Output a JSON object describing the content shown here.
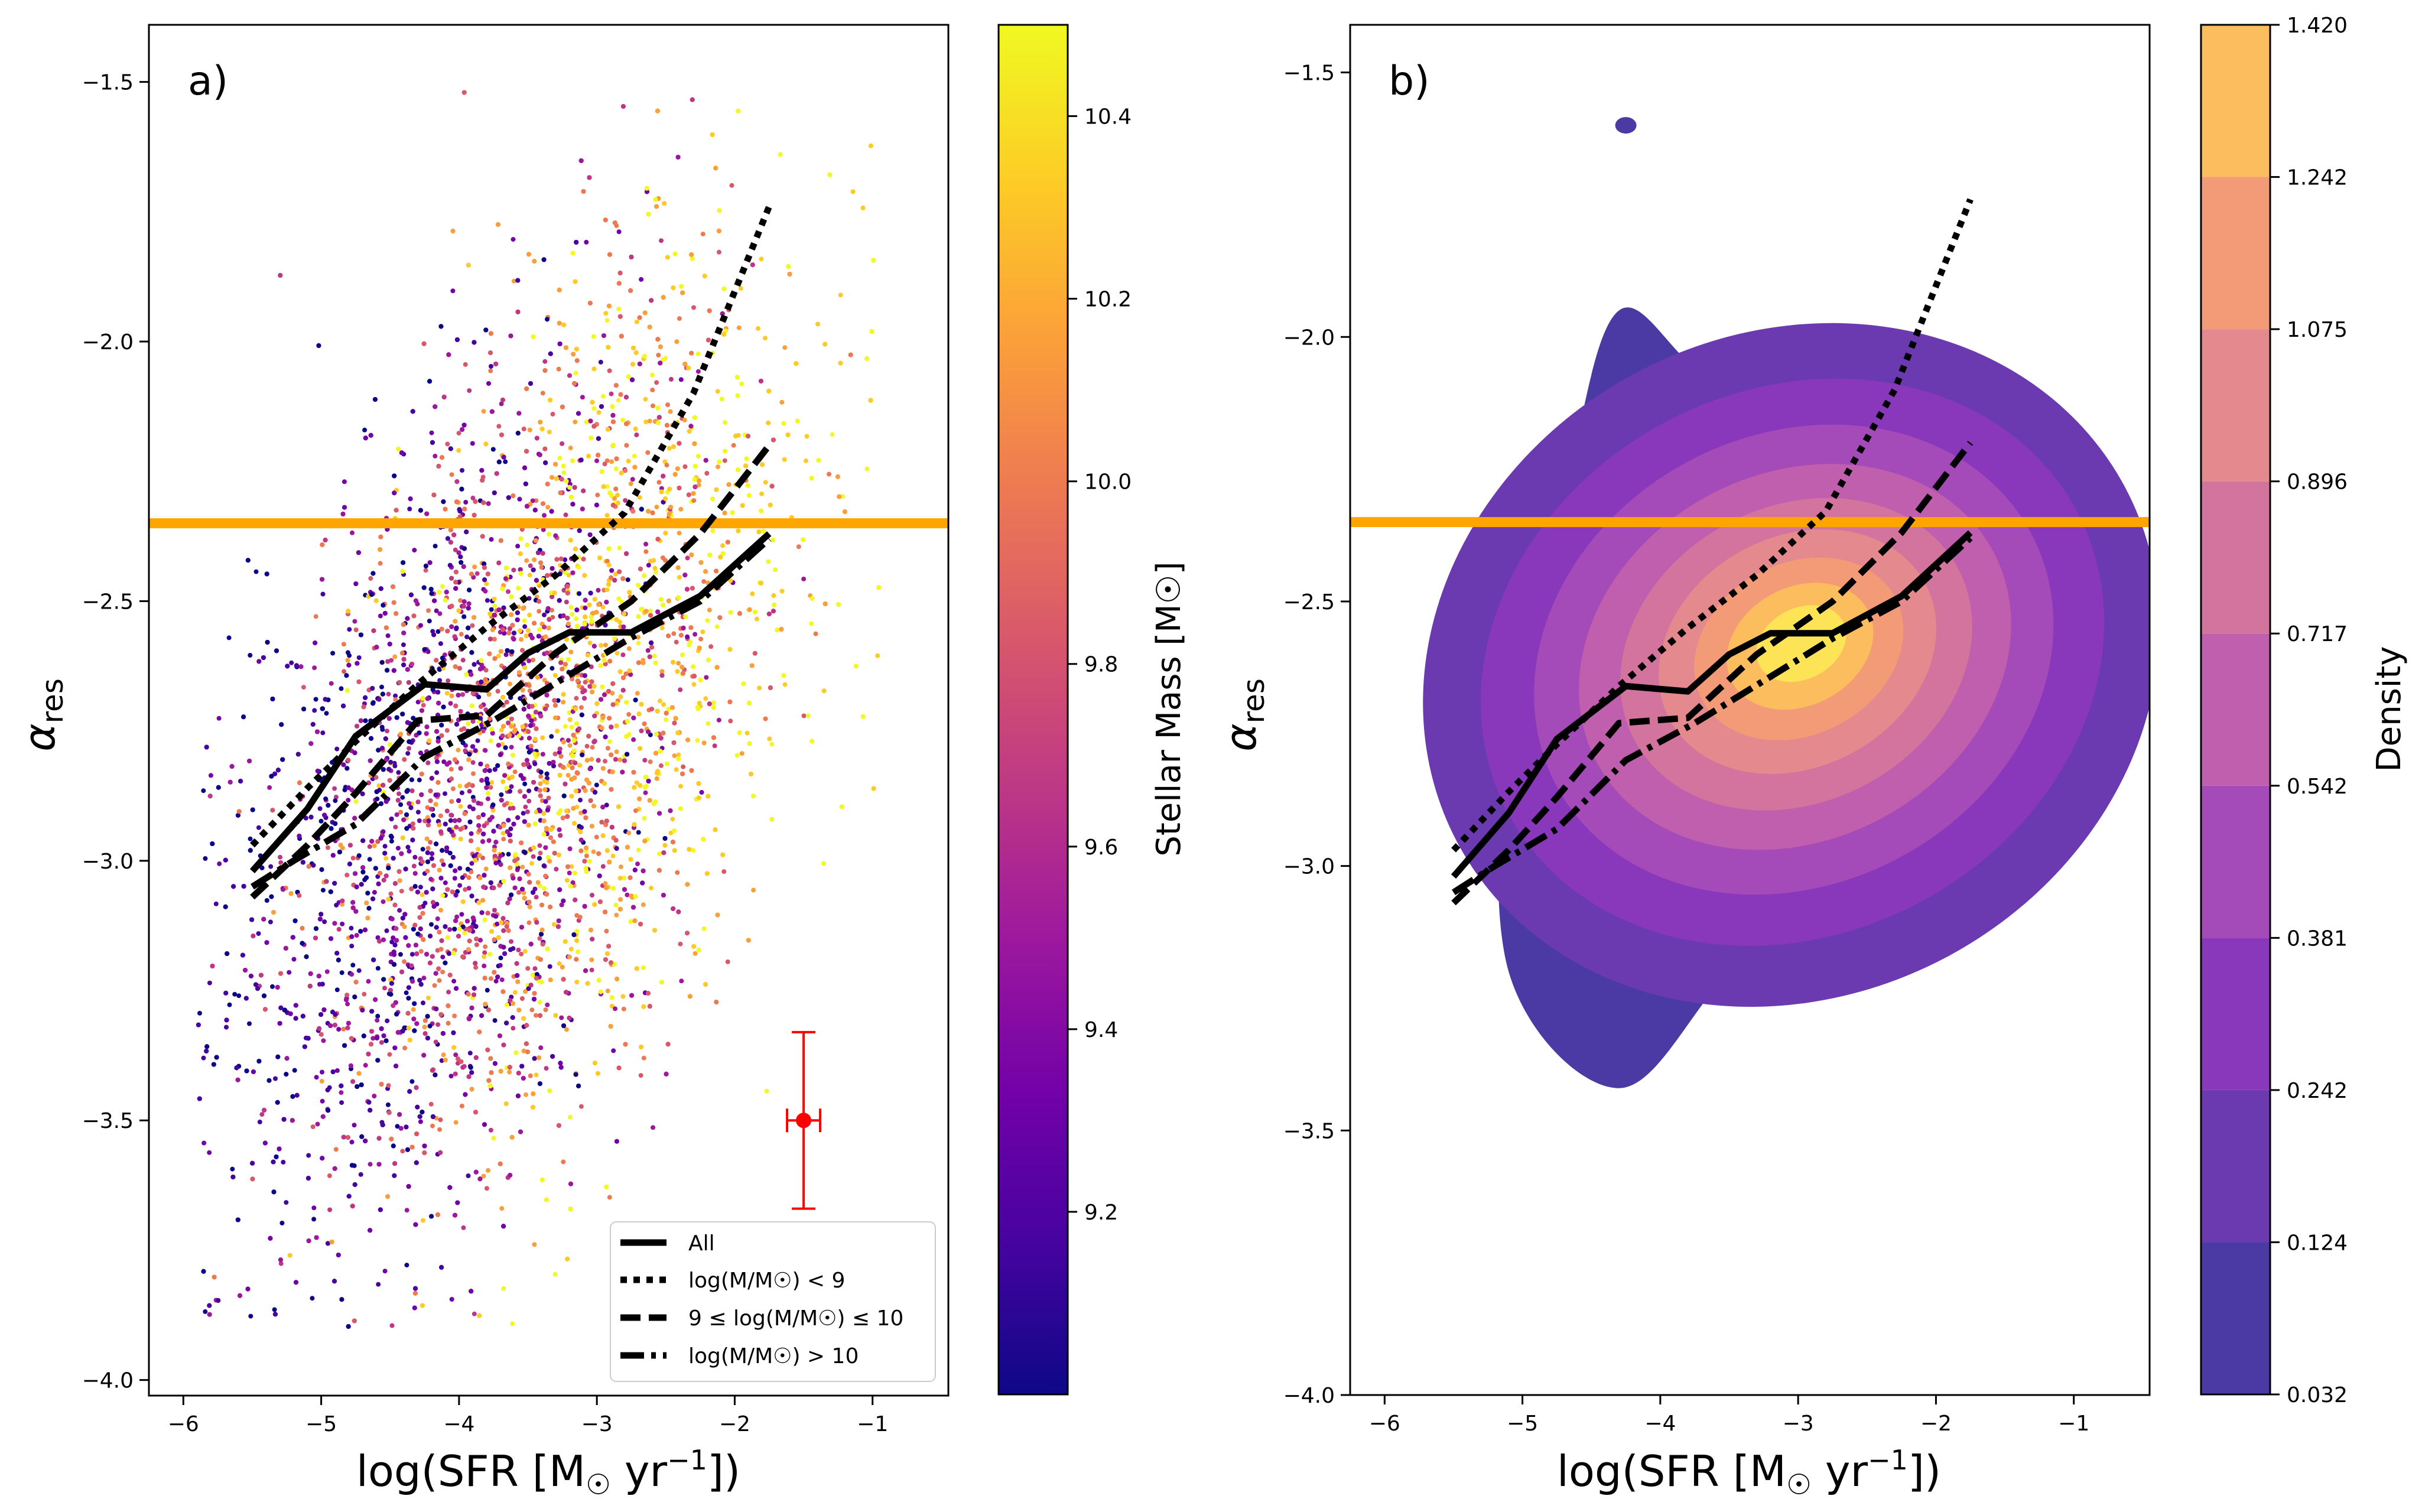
{
  "colors": {
    "hline": "#FFA500",
    "errorbar": "#FF0000",
    "line": "#000000",
    "cmap_plasma": [
      "#0d0887",
      "#46039f",
      "#7201a8",
      "#9c179e",
      "#bd3786",
      "#d8576b",
      "#ed7953",
      "#fb9f3a",
      "#fdca26",
      "#f0f921"
    ],
    "density_levels": [
      "#4b3aa3",
      "#6b3ab0",
      "#8a38bb",
      "#a54ab9",
      "#bf5fad",
      "#d3749f",
      "#e48a8e",
      "#f39b76",
      "#fbbd5e",
      "#fde456"
    ]
  },
  "chart_data": [
    {
      "panel": "a)",
      "type": "scatter",
      "title": "",
      "xlabel": "log(SFR [M☉ yr⁻¹])",
      "ylabel": "αres",
      "xlim": [
        -6.25,
        -0.45
      ],
      "ylim": [
        -4.03,
        -1.39
      ],
      "xticks": [
        -6,
        -5,
        -4,
        -3,
        -2,
        -1
      ],
      "yticks": [
        -4.0,
        -3.5,
        -3.0,
        -2.5,
        -2.0,
        -1.5
      ],
      "xtick_labels": [
        "−6",
        "−5",
        "−4",
        "−3",
        "−2",
        "−1"
      ],
      "ytick_labels": [
        "−4.0",
        "−3.5",
        "−3.0",
        "−2.5",
        "−2.0",
        "−1.5"
      ],
      "hline_y": -2.35,
      "errorbar": {
        "x": -1.5,
        "y": -3.5,
        "xerr": 0.12,
        "yerr": 0.17
      },
      "series": [
        {
          "name": "All",
          "style": "solid",
          "x": [
            -5.5,
            -5.1,
            -4.75,
            -4.25,
            -3.8,
            -3.5,
            -3.2,
            -2.75,
            -2.25,
            -1.75
          ],
          "y": [
            -3.02,
            -2.9,
            -2.76,
            -2.66,
            -2.67,
            -2.6,
            -2.56,
            -2.56,
            -2.49,
            -2.37
          ]
        },
        {
          "name": "log(M/M☉) < 9",
          "style": "dotted",
          "x": [
            -5.5,
            -5.1,
            -4.75,
            -4.3,
            -3.8,
            -3.3,
            -2.8,
            -2.3,
            -1.75
          ],
          "y": [
            -2.97,
            -2.86,
            -2.77,
            -2.66,
            -2.55,
            -2.45,
            -2.33,
            -2.1,
            -1.74
          ]
        },
        {
          "name": "9 ≤ log(M/M☉) ≤ 10",
          "style": "dashed",
          "x": [
            -5.5,
            -5.1,
            -4.75,
            -4.3,
            -3.8,
            -3.3,
            -2.75,
            -2.25,
            -1.75
          ],
          "y": [
            -3.07,
            -2.97,
            -2.87,
            -2.73,
            -2.72,
            -2.6,
            -2.5,
            -2.37,
            -2.2
          ]
        },
        {
          "name": "log(M/M☉) > 10",
          "style": "dashdot",
          "x": [
            -5.5,
            -5.2,
            -4.75,
            -4.25,
            -3.75,
            -3.25,
            -2.75,
            -2.25,
            -1.75
          ],
          "y": [
            -3.05,
            -3.0,
            -2.93,
            -2.8,
            -2.73,
            -2.65,
            -2.57,
            -2.5,
            -2.38
          ]
        }
      ],
      "legend": {
        "position": "lower-right",
        "entries": [
          "All",
          "log(M/M☉) < 9",
          "9 ≤ log(M/M☉) ≤ 10",
          "log(M/M☉) > 10"
        ]
      },
      "colorbar": {
        "label": "Stellar Mass [M☉]",
        "range": [
          9.0,
          10.5
        ],
        "ticks": [
          9.2,
          9.4,
          9.6,
          9.8,
          10.0,
          10.2,
          10.4
        ],
        "tick_labels": [
          "9.2",
          "9.4",
          "9.6",
          "9.8",
          "10.0",
          "10.2",
          "10.4"
        ]
      }
    },
    {
      "panel": "b)",
      "type": "contour",
      "title": "",
      "xlabel": "log(SFR [M☉ yr⁻¹])",
      "ylabel": "αres",
      "xlim": [
        -6.25,
        -0.45
      ],
      "ylim": [
        -4.0,
        -1.41
      ],
      "xticks": [
        -6,
        -5,
        -4,
        -3,
        -2,
        -1
      ],
      "yticks": [
        -4.0,
        -3.5,
        -3.0,
        -2.5,
        -2.0,
        -1.5
      ],
      "xtick_labels": [
        "−6",
        "−5",
        "−4",
        "−3",
        "−2",
        "−1"
      ],
      "ytick_labels": [
        "−4.0",
        "−3.5",
        "−3.0",
        "−2.5",
        "−2.0",
        "−1.5"
      ],
      "hline_y": -2.35,
      "density_peak": {
        "x": -3.05,
        "y": -2.62
      },
      "series": [
        {
          "name": "All",
          "style": "solid",
          "x": [
            -5.5,
            -5.1,
            -4.75,
            -4.25,
            -3.8,
            -3.5,
            -3.2,
            -2.75,
            -2.25,
            -1.75
          ],
          "y": [
            -3.02,
            -2.9,
            -2.76,
            -2.66,
            -2.67,
            -2.6,
            -2.56,
            -2.56,
            -2.49,
            -2.37
          ]
        },
        {
          "name": "log(M/M☉) < 9",
          "style": "dotted",
          "x": [
            -5.5,
            -5.1,
            -4.75,
            -4.3,
            -3.8,
            -3.3,
            -2.8,
            -2.3,
            -1.75
          ],
          "y": [
            -2.97,
            -2.86,
            -2.77,
            -2.66,
            -2.55,
            -2.45,
            -2.33,
            -2.1,
            -1.74
          ]
        },
        {
          "name": "9 ≤ log(M/M☉) ≤ 10",
          "style": "dashed",
          "x": [
            -5.5,
            -5.1,
            -4.75,
            -4.3,
            -3.8,
            -3.3,
            -2.75,
            -2.25,
            -1.75
          ],
          "y": [
            -3.07,
            -2.97,
            -2.87,
            -2.73,
            -2.72,
            -2.6,
            -2.5,
            -2.37,
            -2.2
          ]
        },
        {
          "name": "log(M/M☉) > 10",
          "style": "dashdot",
          "x": [
            -5.5,
            -5.2,
            -4.75,
            -4.25,
            -3.75,
            -3.25,
            -2.75,
            -2.25,
            -1.75
          ],
          "y": [
            -3.05,
            -3.0,
            -2.93,
            -2.8,
            -2.73,
            -2.65,
            -2.57,
            -2.5,
            -2.38
          ]
        }
      ],
      "colorbar": {
        "label": "Density",
        "levels": [
          0.032,
          0.124,
          0.242,
          0.381,
          0.542,
          0.717,
          0.896,
          1.075,
          1.242,
          1.42
        ],
        "tick_labels": [
          "0.032",
          "0.124",
          "0.242",
          "0.381",
          "0.542",
          "0.717",
          "0.896",
          "1.075",
          "1.242",
          "1.420"
        ]
      }
    }
  ]
}
